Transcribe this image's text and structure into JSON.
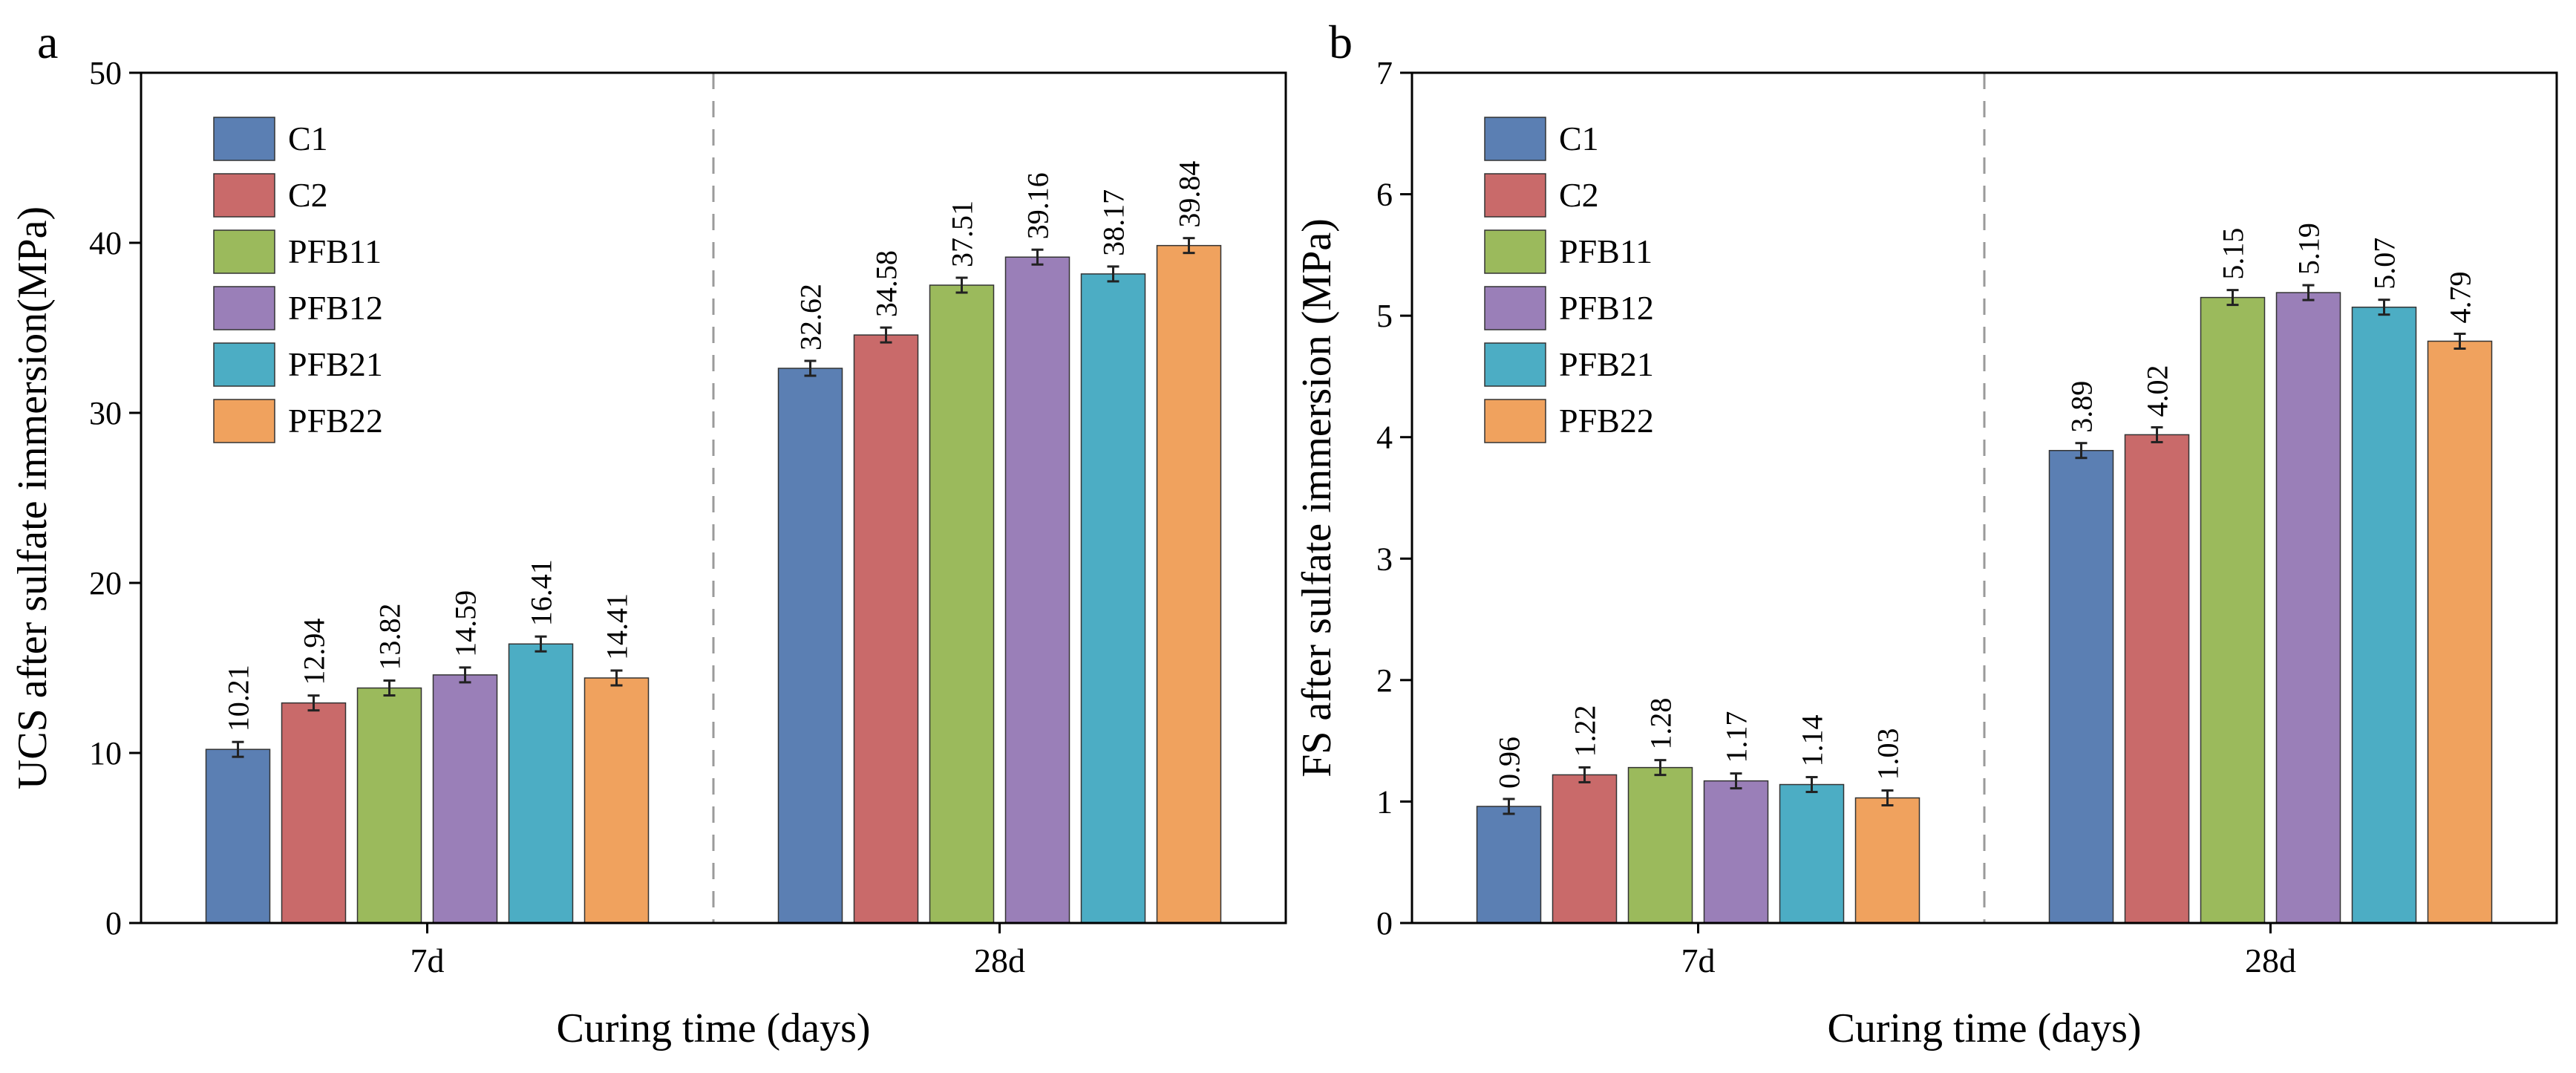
{
  "chart_data": [
    {
      "type": "bar",
      "panel_label": "a",
      "xlabel": "Curing time (days)",
      "ylabel": "UCS after sulfate immersion(MPa)",
      "ylim": [
        0,
        50
      ],
      "yticks": [
        0,
        10,
        20,
        30,
        40,
        50
      ],
      "categories": [
        "7d",
        "28d"
      ],
      "legend_position": "top-left",
      "series": [
        {
          "name": "C1",
          "values": [
            10.21,
            32.62
          ],
          "labels": [
            "10.21",
            "32.62"
          ],
          "color": "#5b7fb3"
        },
        {
          "name": "C2",
          "values": [
            12.94,
            34.58
          ],
          "labels": [
            "12.94",
            "34.58"
          ],
          "color": "#c96a6a"
        },
        {
          "name": "PFB11",
          "values": [
            13.82,
            37.51
          ],
          "labels": [
            "13.82",
            "37.51"
          ],
          "color": "#9bba5c"
        },
        {
          "name": "PFB12",
          "values": [
            14.59,
            39.16
          ],
          "labels": [
            "14.59",
            "39.16"
          ],
          "color": "#9a7fb8"
        },
        {
          "name": "PFB21",
          "values": [
            16.41,
            38.17
          ],
          "labels": [
            "16.41",
            "38.17"
          ],
          "color": "#4cadc4"
        },
        {
          "name": "PFB22",
          "values": [
            14.41,
            39.84
          ],
          "labels": [
            "14.41",
            "39.84"
          ],
          "color": "#f0a25e"
        }
      ]
    },
    {
      "type": "bar",
      "panel_label": "b",
      "xlabel": "Curing time (days)",
      "ylabel": "FS after sulfate immersion (MPa)",
      "ylim": [
        0,
        7
      ],
      "yticks": [
        0,
        1,
        2,
        3,
        4,
        5,
        6,
        7
      ],
      "categories": [
        "7d",
        "28d"
      ],
      "legend_position": "top-left",
      "series": [
        {
          "name": "C1",
          "values": [
            0.96,
            3.89
          ],
          "labels": [
            "0.96",
            "3.89"
          ],
          "color": "#5b7fb3"
        },
        {
          "name": "C2",
          "values": [
            1.22,
            4.02
          ],
          "labels": [
            "1.22",
            "4.02"
          ],
          "color": "#c96a6a"
        },
        {
          "name": "PFB11",
          "values": [
            1.28,
            5.15
          ],
          "labels": [
            "1.28",
            "5.15"
          ],
          "color": "#9bba5c"
        },
        {
          "name": "PFB12",
          "values": [
            1.17,
            5.19
          ],
          "labels": [
            "1.17",
            "5.19"
          ],
          "color": "#9a7fb8"
        },
        {
          "name": "PFB21",
          "values": [
            1.14,
            5.07
          ],
          "labels": [
            "1.14",
            "5.07"
          ],
          "color": "#4cadc4"
        },
        {
          "name": "PFB22",
          "values": [
            1.03,
            4.79
          ],
          "labels": [
            "1.03",
            "4.79"
          ],
          "color": "#f0a25e"
        }
      ]
    }
  ]
}
